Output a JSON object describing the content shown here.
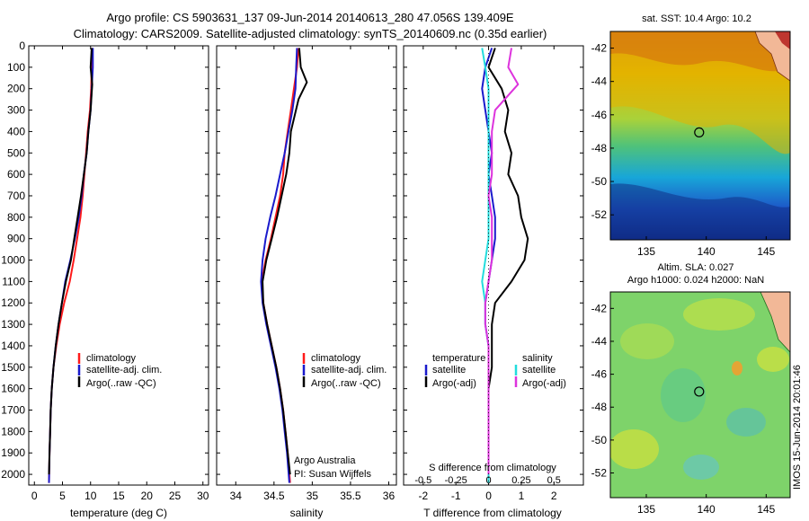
{
  "header": {
    "title_line1": "Argo profile: CS 5903631_137 09-Jun-2014 20140613_280 47.056S 139.409E",
    "title_line2": "Climatology: CARS2009. Satellite-adjusted climatology: synTS_20140609.nc (0.35d earlier)"
  },
  "credits": {
    "org": "Argo Australia",
    "pi": "PI: Susan Wijffels",
    "stamp": "IMOS 15-Jun-2014 20:01:46"
  },
  "colors": {
    "climatology": "#ff1a1a",
    "satellite": "#1a1acc",
    "argo": "#000000",
    "cyan": "#22dddd",
    "magenta": "#dd33dd"
  },
  "chart_data": [
    {
      "id": "temperature",
      "type": "line",
      "xlabel": "temperature (deg C)",
      "ylabel": "",
      "xlim": [
        -1,
        31
      ],
      "ylim": [
        2050,
        0
      ],
      "xticks": [
        0,
        5,
        10,
        15,
        20,
        25,
        30
      ],
      "yticks": [
        0,
        100,
        200,
        300,
        400,
        500,
        600,
        700,
        800,
        900,
        1000,
        1100,
        1200,
        1300,
        1400,
        1500,
        1600,
        1700,
        1800,
        1900,
        2000
      ],
      "legend": [
        "climatology",
        "satellite-adj. clim.",
        "Argo(..raw -QC)"
      ],
      "series": [
        {
          "name": "climatology",
          "color": "climatology",
          "x": [
            10.3,
            10.2,
            10.1,
            9.9,
            9.5,
            9.2,
            8.9,
            8.6,
            8.2,
            7.6,
            7.0,
            6.3,
            5.3,
            4.5,
            3.9,
            3.4,
            3.1,
            2.9,
            2.8,
            2.7,
            2.6
          ],
          "y": [
            10,
            100,
            200,
            300,
            400,
            500,
            600,
            700,
            800,
            900,
            1000,
            1100,
            1200,
            1300,
            1400,
            1500,
            1600,
            1700,
            1800,
            1900,
            2040
          ]
        },
        {
          "name": "satellite-adj. clim.",
          "color": "satellite",
          "x": [
            10.4,
            10.4,
            10.2,
            10.0,
            9.6,
            9.3,
            8.8,
            8.4,
            7.9,
            7.2,
            6.4,
            5.5,
            4.9,
            4.3,
            3.8,
            3.4,
            3.1,
            2.9,
            2.8,
            2.7,
            2.6
          ],
          "y": [
            10,
            100,
            200,
            300,
            400,
            500,
            600,
            700,
            800,
            900,
            1000,
            1100,
            1200,
            1300,
            1400,
            1500,
            1600,
            1700,
            1800,
            1900,
            2040
          ]
        },
        {
          "name": "Argo(..raw -QC)",
          "color": "argo",
          "x": [
            10.2,
            10.0,
            10.3,
            10.0,
            9.6,
            9.3,
            8.8,
            8.3,
            7.7,
            7.1,
            6.5,
            5.6,
            4.9,
            4.3,
            3.8,
            3.4,
            3.1,
            2.9,
            2.8,
            2.7,
            2.6
          ],
          "y": [
            10,
            100,
            180,
            300,
            400,
            500,
            600,
            700,
            800,
            900,
            1000,
            1100,
            1200,
            1300,
            1400,
            1500,
            1600,
            1700,
            1800,
            1900,
            2000
          ]
        }
      ]
    },
    {
      "id": "salinity",
      "type": "line",
      "xlabel": "salinity",
      "ylabel": "",
      "xlim": [
        33.75,
        36.1
      ],
      "ylim": [
        2050,
        0
      ],
      "xticks": [
        34,
        34.5,
        35,
        35.5,
        36
      ],
      "xticklabels": [
        "34",
        "34.5",
        "35",
        "35.5",
        "36"
      ],
      "legend": [
        "climatology",
        "satellite-adj. clim.",
        "Argo(..raw -QC)"
      ],
      "series": [
        {
          "name": "climatology",
          "color": "climatology",
          "x": [
            34.82,
            34.8,
            34.76,
            34.72,
            34.68,
            34.64,
            34.62,
            34.58,
            34.52,
            34.46,
            34.39,
            34.34,
            34.36,
            34.41,
            34.47,
            34.53,
            34.58,
            34.62,
            34.65,
            34.68,
            34.71
          ],
          "y": [
            10,
            100,
            200,
            300,
            400,
            500,
            600,
            700,
            800,
            900,
            1000,
            1100,
            1200,
            1300,
            1400,
            1500,
            1600,
            1700,
            1800,
            1900,
            2040
          ]
        },
        {
          "name": "satellite-adj. clim.",
          "color": "satellite",
          "x": [
            34.8,
            34.79,
            34.78,
            34.74,
            34.69,
            34.64,
            34.58,
            34.52,
            34.45,
            34.39,
            34.35,
            34.33,
            34.35,
            34.4,
            34.46,
            34.52,
            34.57,
            34.61,
            34.64,
            34.67,
            34.7
          ],
          "y": [
            10,
            100,
            200,
            300,
            400,
            500,
            600,
            700,
            800,
            900,
            1000,
            1100,
            1200,
            1300,
            1400,
            1500,
            1600,
            1700,
            1800,
            1900,
            2040
          ]
        },
        {
          "name": "Argo(..raw -QC)",
          "color": "argo",
          "x": [
            34.83,
            34.85,
            34.93,
            34.82,
            34.72,
            34.7,
            34.66,
            34.6,
            34.54,
            34.47,
            34.4,
            34.35,
            34.36,
            34.41,
            34.47,
            34.53,
            34.58,
            34.62,
            34.65,
            34.68,
            34.71
          ],
          "y": [
            10,
            100,
            170,
            250,
            400,
            500,
            600,
            700,
            800,
            900,
            1000,
            1100,
            1200,
            1300,
            1400,
            1500,
            1600,
            1700,
            1800,
            1900,
            2000
          ]
        }
      ]
    },
    {
      "id": "difference",
      "type": "line",
      "xlabel": "T difference from climatology",
      "toplabel": "S difference from climatology",
      "xlim": [
        -2.6,
        2.9
      ],
      "ylim": [
        2050,
        0
      ],
      "xticks": [
        -2,
        -1,
        0,
        1,
        2
      ],
      "xticklabels": [
        "-2",
        "-1",
        "0",
        "1",
        "2"
      ],
      "sticks": [
        -0.5,
        -0.25,
        0,
        0.25,
        0.5
      ],
      "sticklabels": [
        "-0.5",
        "-0.25",
        "0",
        "0.25",
        "0.5"
      ],
      "legend_temperature": {
        "title": "temperature",
        "items": [
          "satellite",
          "Argo(-adj)"
        ]
      },
      "legend_salinity": {
        "title": "salinity",
        "items": [
          "satellite",
          "Argo(-adj)"
        ]
      },
      "series": [
        {
          "name": "T satellite",
          "color": "satellite",
          "x": [
            0.1,
            -0.1,
            -0.2,
            -0.1,
            0.0,
            0.1,
            0.0,
            0.1,
            0.2,
            0.2,
            0.1,
            0.0,
            -0.1,
            -0.1,
            0.0,
            0.0,
            0.0,
            0.0,
            0.0,
            0.0,
            0.0
          ],
          "y": [
            10,
            100,
            200,
            300,
            400,
            500,
            600,
            700,
            800,
            900,
            1000,
            1100,
            1200,
            1300,
            1400,
            1500,
            1600,
            1700,
            1800,
            1900,
            2040
          ]
        },
        {
          "name": "T Argo(-adj)",
          "color": "argo",
          "x": [
            0.2,
            0.0,
            0.4,
            0.6,
            0.5,
            0.7,
            0.6,
            0.9,
            1.0,
            1.2,
            1.1,
            0.7,
            0.2,
            0.1,
            0.1,
            0.1,
            0.0,
            0.0,
            0.0,
            0.0,
            0.0
          ],
          "y": [
            10,
            100,
            200,
            300,
            400,
            500,
            600,
            700,
            800,
            900,
            1000,
            1100,
            1200,
            1300,
            1400,
            1500,
            1600,
            1700,
            1800,
            1900,
            2000
          ]
        },
        {
          "name": "S satellite",
          "color": "cyan",
          "x": [
            -0.2,
            -0.1,
            0.0,
            0.0,
            0.0,
            0.0,
            0.0,
            0.0,
            0.0,
            0.0,
            -0.1,
            -0.2,
            -0.1,
            -0.1,
            0.0,
            0.0,
            0.0,
            0.0,
            0.0,
            0.0,
            0.0
          ],
          "y": [
            10,
            100,
            200,
            300,
            400,
            500,
            600,
            700,
            800,
            900,
            1000,
            1100,
            1200,
            1300,
            1400,
            1500,
            1600,
            1700,
            1800,
            1900,
            2040
          ]
        },
        {
          "name": "S Argo(-adj)",
          "color": "magenta",
          "x": [
            0.7,
            0.6,
            0.9,
            0.2,
            0.1,
            0.1,
            0.1,
            0.0,
            0.1,
            0.1,
            0.1,
            0.0,
            -0.1,
            -0.1,
            0.0,
            0.0,
            0.0,
            0.0,
            0.0,
            0.0,
            0.0
          ],
          "y": [
            10,
            100,
            180,
            300,
            400,
            500,
            600,
            700,
            800,
            900,
            1000,
            1100,
            1200,
            1300,
            1400,
            1500,
            1600,
            1700,
            1800,
            1900,
            2000
          ]
        }
      ]
    },
    {
      "id": "sst_map",
      "type": "heatmap",
      "title": "sat. SST: 10.4 Argo: 10.2",
      "xlim": [
        132,
        147
      ],
      "ylim": [
        -53.5,
        -41
      ],
      "xticks": [
        135,
        140,
        145
      ],
      "yticks": [
        -42,
        -44,
        -46,
        -48,
        -50,
        -52
      ],
      "marker": {
        "lon": 139.409,
        "lat": -47.056
      }
    },
    {
      "id": "sla_map",
      "type": "heatmap",
      "title_line1": "Altim. SLA: 0.027",
      "title_line2": "Argo h1000: 0.024 h2000: NaN",
      "xlim": [
        132,
        147
      ],
      "ylim": [
        -53.5,
        -41
      ],
      "xticks": [
        135,
        140,
        145
      ],
      "yticks": [
        -42,
        -44,
        -46,
        -48,
        -50,
        -52
      ],
      "marker": {
        "lon": 139.409,
        "lat": -47.056
      }
    }
  ]
}
